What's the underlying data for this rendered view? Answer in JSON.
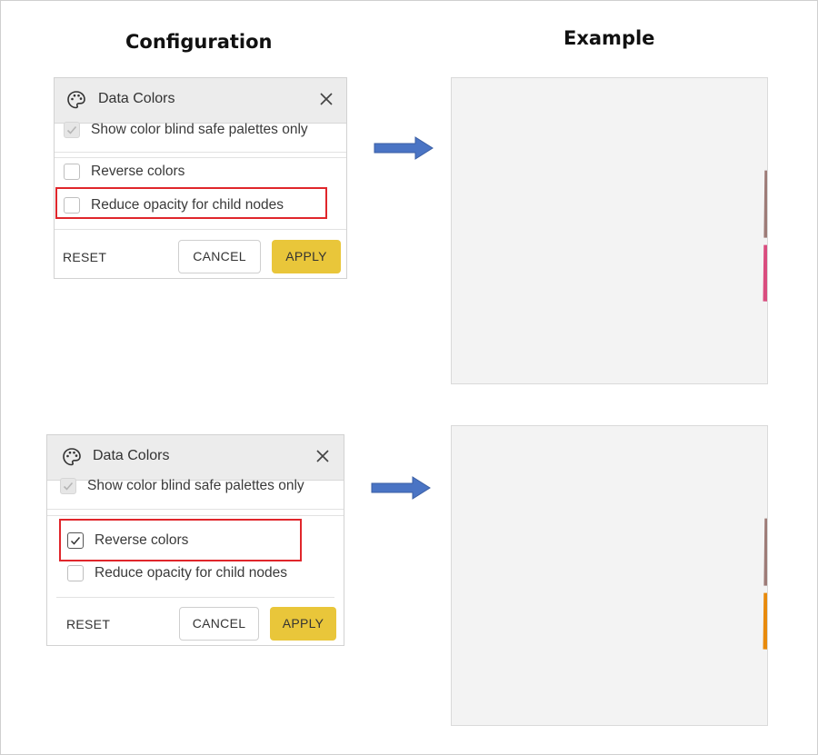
{
  "headings": {
    "configuration": "Configuration",
    "example": "Example"
  },
  "colors": {
    "pink": "#d94c7e",
    "mauve": "#9d7b77",
    "orange": "#e88a0c",
    "apply": "#e9c63a",
    "highlight": "#e0262b",
    "arrow": "#4a74c4"
  },
  "panel_top": {
    "title": "Data Colors",
    "icon": "palette-icon",
    "option_blind": "Show color blind safe palettes only",
    "option_reverse": "Reverse colors",
    "option_reduce": "Reduce opacity for child nodes",
    "reset": "RESET",
    "cancel": "CANCEL",
    "apply": "APPLY"
  },
  "panel_bottom": {
    "title": "Data Colors",
    "icon": "palette-icon",
    "option_blind": "Show color blind safe palettes only",
    "option_reverse": "Reverse colors",
    "option_reduce": "Reduce opacity for child nodes",
    "reset": "RESET",
    "cancel": "CANCEL",
    "apply": "APPLY"
  }
}
